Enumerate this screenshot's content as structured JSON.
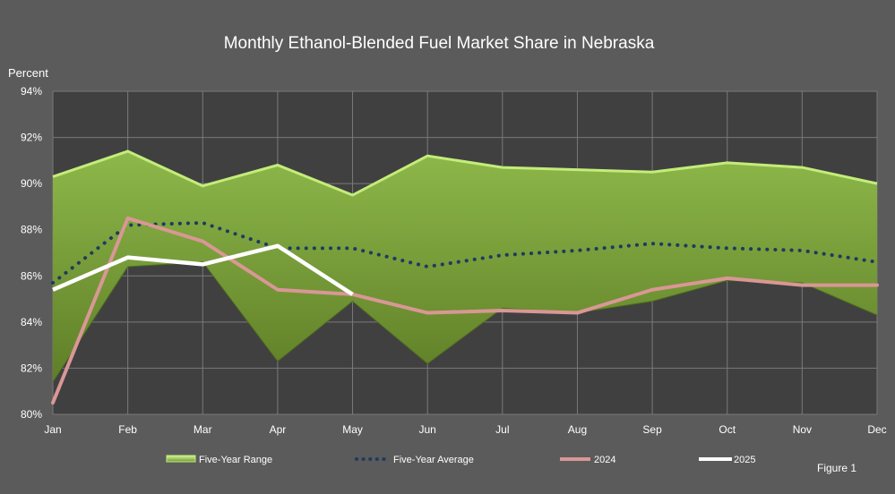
{
  "chart_data": {
    "type": "area",
    "title": "Monthly Ethanol-Blended Fuel Market Share in Nebraska",
    "ylabel": "Percent",
    "xlabel": "",
    "figure_label": "Figure 1",
    "categories": [
      "Jan",
      "Feb",
      "Mar",
      "Apr",
      "May",
      "Jun",
      "Jul",
      "Aug",
      "Sep",
      "Oct",
      "Nov",
      "Dec"
    ],
    "y_ticks": [
      "80%",
      "82%",
      "84%",
      "86%",
      "88%",
      "90%",
      "92%",
      "94%"
    ],
    "ylim": [
      80,
      94
    ],
    "grid": true,
    "legend_position": "bottom",
    "range": {
      "name": "Five-Year Range",
      "high": [
        90.3,
        91.4,
        89.9,
        90.8,
        89.5,
        91.2,
        90.7,
        90.6,
        90.5,
        90.9,
        90.7,
        90.0
      ],
      "low": [
        81.4,
        86.4,
        86.6,
        82.3,
        84.9,
        82.2,
        84.6,
        84.4,
        84.9,
        85.8,
        85.7,
        84.3
      ]
    },
    "series": [
      {
        "name": "Five-Year Average",
        "values": [
          85.7,
          88.2,
          88.3,
          87.2,
          87.2,
          86.4,
          86.9,
          87.1,
          87.4,
          87.2,
          87.1,
          86.6
        ]
      },
      {
        "name": "2024",
        "values": [
          80.5,
          88.5,
          87.5,
          85.4,
          85.2,
          84.4,
          84.5,
          84.4,
          85.4,
          85.9,
          85.6,
          85.6
        ]
      },
      {
        "name": "2025",
        "values": [
          85.4,
          86.8,
          86.5,
          87.3,
          85.2,
          null,
          null,
          null,
          null,
          null,
          null,
          null
        ]
      }
    ],
    "colors": {
      "background": "#5b5b5b",
      "plot_background": "#404040",
      "grid": "#7a7a7a",
      "range_top": "#8db84a",
      "range_bottom": "#5f7e27",
      "range_edge": "#c4ec7a",
      "average": "#1f3a60",
      "series_2024": "#d99795",
      "series_2025": "#ffffff"
    }
  }
}
